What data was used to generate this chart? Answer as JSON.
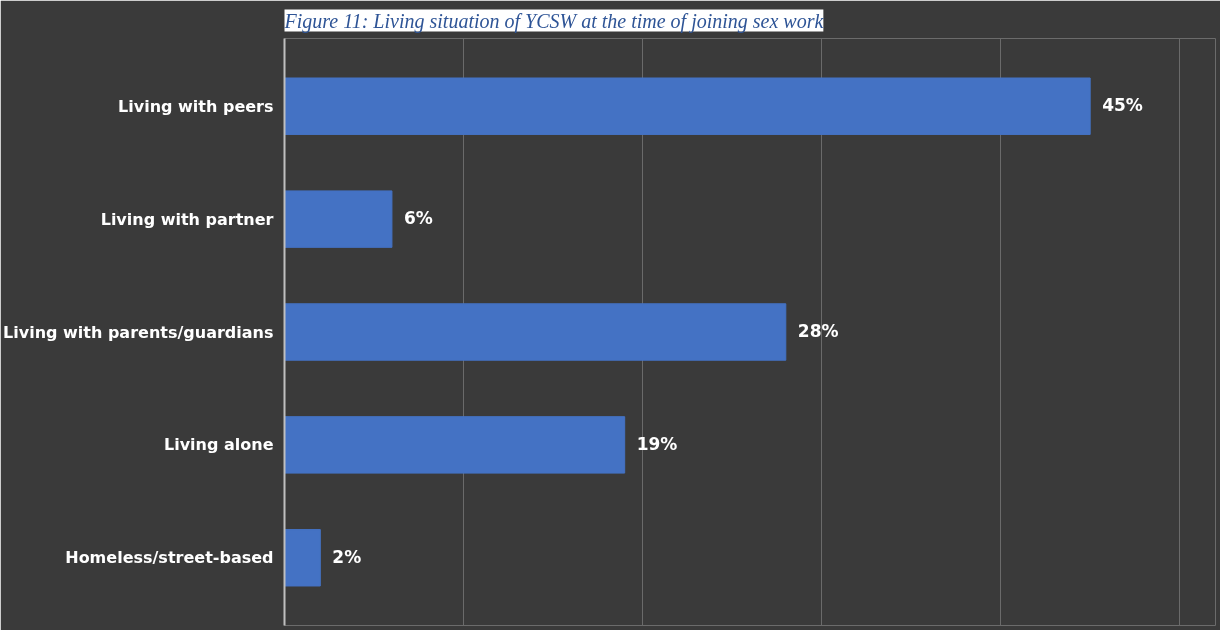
{
  "chart_data": {
    "type": "bar",
    "orientation": "horizontal",
    "title": "Figure 11: Living situation of YCSW at the time of joining sex work",
    "categories": [
      "Living with peers",
      "Living with partner",
      "Living with parents/guardians",
      "Living alone",
      "Homeless/street-based"
    ],
    "values": [
      45,
      6,
      28,
      19,
      2
    ],
    "color": "#4472c4",
    "data_labels": true,
    "value_labels": [
      "45%",
      "6%",
      "28%",
      "19%",
      "2%"
    ],
    "xlim": [
      0,
      50
    ],
    "xticks": [
      {
        "value": 0,
        "label": null
      },
      {
        "value": 10,
        "label": null
      },
      {
        "value": 20,
        "label": null
      },
      {
        "value": 30,
        "label": null
      },
      {
        "value": 40,
        "label": null
      },
      {
        "value": 50,
        "label": null
      }
    ],
    "tick_labels": "y",
    "grid": "x"
  }
}
